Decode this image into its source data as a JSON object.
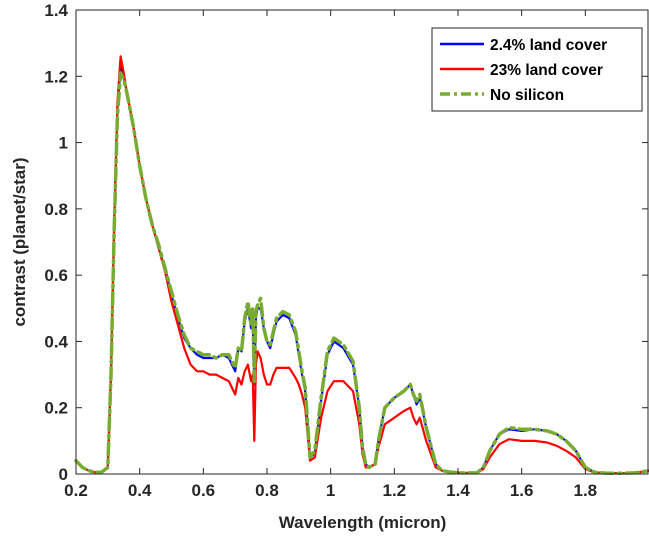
{
  "chart_data": {
    "type": "line",
    "title": "",
    "xlabel": "Wavelength (micron)",
    "ylabel": "contrast (planet/star)",
    "xlim": [
      0.2,
      2.0
    ],
    "ylim": [
      0,
      1.4
    ],
    "xticks": [
      0.2,
      0.4,
      0.6,
      0.8,
      1,
      1.2,
      1.4,
      1.6,
      1.8
    ],
    "xtick_labels": [
      "0.2",
      "0.4",
      "0.6",
      "0.8",
      "1",
      "1.2",
      "1.4",
      "1.6",
      "1.8"
    ],
    "yticks": [
      0,
      0.2,
      0.4,
      0.6,
      0.8,
      1,
      1.2,
      1.4
    ],
    "ytick_labels": [
      "0",
      "0.2",
      "0.4",
      "0.6",
      "0.8",
      "1",
      "1.2",
      "1.4"
    ],
    "grid": false,
    "legend_position": "top-right",
    "series": [
      {
        "name": "2.4% land cover",
        "color": "#0000ff",
        "style": "solid",
        "x": [
          0.2,
          0.22,
          0.24,
          0.26,
          0.28,
          0.3,
          0.31,
          0.32,
          0.33,
          0.34,
          0.35,
          0.36,
          0.38,
          0.4,
          0.42,
          0.44,
          0.46,
          0.48,
          0.5,
          0.52,
          0.54,
          0.56,
          0.58,
          0.6,
          0.62,
          0.64,
          0.66,
          0.68,
          0.7,
          0.71,
          0.72,
          0.73,
          0.74,
          0.75,
          0.755,
          0.76,
          0.765,
          0.77,
          0.78,
          0.79,
          0.8,
          0.81,
          0.82,
          0.83,
          0.85,
          0.87,
          0.89,
          0.9,
          0.91,
          0.92,
          0.935,
          0.95,
          0.97,
          0.99,
          1.01,
          1.04,
          1.07,
          1.09,
          1.1,
          1.11,
          1.12,
          1.14,
          1.15,
          1.17,
          1.2,
          1.23,
          1.25,
          1.26,
          1.27,
          1.28,
          1.3,
          1.33,
          1.35,
          1.38,
          1.42,
          1.46,
          1.48,
          1.5,
          1.53,
          1.56,
          1.6,
          1.64,
          1.68,
          1.71,
          1.74,
          1.77,
          1.8,
          1.83,
          1.87,
          1.92,
          1.96,
          2.0
        ],
        "y": [
          0.04,
          0.02,
          0.01,
          0.005,
          0.005,
          0.02,
          0.3,
          0.75,
          1.1,
          1.23,
          1.2,
          1.15,
          1.05,
          0.93,
          0.83,
          0.75,
          0.68,
          0.62,
          0.54,
          0.47,
          0.41,
          0.38,
          0.36,
          0.35,
          0.35,
          0.35,
          0.36,
          0.35,
          0.31,
          0.38,
          0.37,
          0.46,
          0.5,
          0.44,
          0.48,
          0.27,
          0.47,
          0.5,
          0.5,
          0.44,
          0.4,
          0.38,
          0.42,
          0.46,
          0.48,
          0.47,
          0.42,
          0.36,
          0.3,
          0.25,
          0.05,
          0.06,
          0.22,
          0.36,
          0.4,
          0.38,
          0.33,
          0.2,
          0.08,
          0.03,
          0.02,
          0.03,
          0.1,
          0.2,
          0.23,
          0.25,
          0.27,
          0.24,
          0.21,
          0.23,
          0.14,
          0.03,
          0.01,
          0.005,
          0.003,
          0.004,
          0.02,
          0.07,
          0.12,
          0.135,
          0.13,
          0.135,
          0.13,
          0.12,
          0.1,
          0.07,
          0.02,
          0.005,
          0.002,
          0.002,
          0.004,
          0.01
        ]
      },
      {
        "name": "23% land cover",
        "color": "#ff0000",
        "style": "solid",
        "x": [
          0.2,
          0.22,
          0.24,
          0.26,
          0.28,
          0.3,
          0.31,
          0.32,
          0.33,
          0.34,
          0.35,
          0.36,
          0.38,
          0.4,
          0.42,
          0.44,
          0.46,
          0.48,
          0.5,
          0.52,
          0.54,
          0.56,
          0.58,
          0.6,
          0.62,
          0.64,
          0.66,
          0.68,
          0.7,
          0.71,
          0.72,
          0.73,
          0.74,
          0.75,
          0.755,
          0.76,
          0.765,
          0.77,
          0.78,
          0.79,
          0.8,
          0.81,
          0.82,
          0.83,
          0.85,
          0.87,
          0.89,
          0.9,
          0.91,
          0.92,
          0.935,
          0.95,
          0.97,
          0.99,
          1.01,
          1.04,
          1.07,
          1.09,
          1.1,
          1.11,
          1.12,
          1.14,
          1.15,
          1.17,
          1.2,
          1.23,
          1.25,
          1.26,
          1.27,
          1.28,
          1.3,
          1.33,
          1.35,
          1.38,
          1.42,
          1.46,
          1.48,
          1.5,
          1.53,
          1.56,
          1.6,
          1.64,
          1.68,
          1.71,
          1.74,
          1.77,
          1.8,
          1.83,
          1.87,
          1.92,
          1.96,
          2.0
        ],
        "y": [
          0.04,
          0.02,
          0.01,
          0.005,
          0.005,
          0.02,
          0.3,
          0.76,
          1.12,
          1.26,
          1.21,
          1.15,
          1.05,
          0.93,
          0.83,
          0.75,
          0.68,
          0.61,
          0.52,
          0.45,
          0.38,
          0.33,
          0.31,
          0.31,
          0.3,
          0.3,
          0.29,
          0.28,
          0.24,
          0.29,
          0.27,
          0.31,
          0.33,
          0.28,
          0.3,
          0.1,
          0.33,
          0.37,
          0.35,
          0.3,
          0.27,
          0.27,
          0.3,
          0.32,
          0.32,
          0.32,
          0.29,
          0.27,
          0.24,
          0.2,
          0.04,
          0.05,
          0.17,
          0.25,
          0.28,
          0.28,
          0.25,
          0.15,
          0.06,
          0.02,
          0.02,
          0.03,
          0.08,
          0.15,
          0.17,
          0.19,
          0.2,
          0.17,
          0.15,
          0.17,
          0.1,
          0.02,
          0.01,
          0.004,
          0.002,
          0.003,
          0.015,
          0.05,
          0.09,
          0.105,
          0.1,
          0.1,
          0.095,
          0.085,
          0.07,
          0.05,
          0.015,
          0.004,
          0.002,
          0.002,
          0.004,
          0.01
        ]
      },
      {
        "name": "No silicon",
        "color": "#77ac30",
        "style": "dashdot",
        "x": [
          0.2,
          0.22,
          0.24,
          0.26,
          0.28,
          0.3,
          0.31,
          0.32,
          0.33,
          0.34,
          0.35,
          0.36,
          0.38,
          0.4,
          0.42,
          0.44,
          0.46,
          0.48,
          0.5,
          0.52,
          0.54,
          0.56,
          0.58,
          0.6,
          0.62,
          0.64,
          0.66,
          0.68,
          0.7,
          0.71,
          0.72,
          0.73,
          0.74,
          0.75,
          0.755,
          0.76,
          0.765,
          0.77,
          0.78,
          0.79,
          0.8,
          0.81,
          0.82,
          0.83,
          0.85,
          0.87,
          0.89,
          0.9,
          0.91,
          0.92,
          0.935,
          0.95,
          0.97,
          0.99,
          1.01,
          1.04,
          1.07,
          1.09,
          1.1,
          1.11,
          1.12,
          1.14,
          1.15,
          1.17,
          1.2,
          1.23,
          1.25,
          1.26,
          1.27,
          1.28,
          1.3,
          1.33,
          1.35,
          1.38,
          1.42,
          1.46,
          1.48,
          1.5,
          1.53,
          1.56,
          1.6,
          1.64,
          1.68,
          1.71,
          1.74,
          1.77,
          1.8,
          1.83,
          1.87,
          1.92,
          1.96,
          2.0
        ],
        "y": [
          0.04,
          0.02,
          0.01,
          0.005,
          0.005,
          0.02,
          0.3,
          0.74,
          1.08,
          1.21,
          1.19,
          1.15,
          1.05,
          0.93,
          0.83,
          0.75,
          0.69,
          0.62,
          0.55,
          0.48,
          0.42,
          0.38,
          0.37,
          0.36,
          0.36,
          0.35,
          0.36,
          0.36,
          0.32,
          0.38,
          0.37,
          0.47,
          0.52,
          0.45,
          0.5,
          0.28,
          0.49,
          0.51,
          0.53,
          0.44,
          0.4,
          0.39,
          0.43,
          0.47,
          0.49,
          0.48,
          0.43,
          0.37,
          0.31,
          0.26,
          0.05,
          0.07,
          0.23,
          0.37,
          0.41,
          0.39,
          0.34,
          0.2,
          0.08,
          0.03,
          0.02,
          0.03,
          0.1,
          0.2,
          0.23,
          0.25,
          0.27,
          0.24,
          0.22,
          0.24,
          0.14,
          0.03,
          0.01,
          0.005,
          0.003,
          0.004,
          0.02,
          0.07,
          0.12,
          0.14,
          0.135,
          0.135,
          0.13,
          0.12,
          0.1,
          0.07,
          0.02,
          0.005,
          0.002,
          0.002,
          0.004,
          0.01
        ]
      }
    ]
  }
}
